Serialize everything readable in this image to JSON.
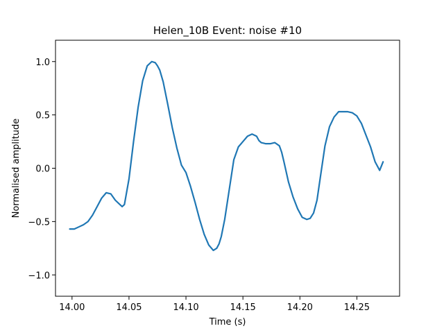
{
  "chart_data": {
    "type": "line",
    "title": "Helen_10B Event: noise #10",
    "xlabel": "Time (s)",
    "ylabel": "Normalised amplitude",
    "xlim": [
      13.9855,
      14.2875
    ],
    "ylim": [
      -1.2,
      1.2
    ],
    "x_ticks": [
      14.0,
      14.05,
      14.1,
      14.15,
      14.2,
      14.25
    ],
    "x_tick_labels": [
      "14.00",
      "14.05",
      "14.10",
      "14.15",
      "14.20",
      "14.25"
    ],
    "y_ticks": [
      -1.0,
      -0.5,
      0.0,
      0.5,
      1.0
    ],
    "y_tick_labels": [
      "−1.0",
      "−0.5",
      "0.0",
      "0.5",
      "1.0"
    ],
    "grid": false,
    "line_color": "#1f77b4",
    "series": [
      {
        "x": [
          13.998,
          14.002,
          14.006,
          14.01,
          14.014,
          14.018,
          14.022,
          14.026,
          14.03,
          14.034,
          14.038,
          14.042,
          14.044,
          14.046,
          14.05,
          14.054,
          14.058,
          14.062,
          14.066,
          14.07,
          14.073,
          14.075,
          14.077,
          14.08,
          14.084,
          14.088,
          14.092,
          14.096,
          14.1,
          14.104,
          14.108,
          14.112,
          14.116,
          14.12,
          14.124,
          14.127,
          14.129,
          14.131,
          14.134,
          14.138,
          14.142,
          14.146,
          14.15,
          14.154,
          14.158,
          14.162,
          14.164,
          14.166,
          14.17,
          14.174,
          14.178,
          14.182,
          14.184,
          14.186,
          14.19,
          14.194,
          14.198,
          14.202,
          14.206,
          14.209,
          14.212,
          14.215,
          14.218,
          14.222,
          14.226,
          14.23,
          14.234,
          14.238,
          14.242,
          14.246,
          14.25,
          14.254,
          14.258,
          14.262,
          14.266,
          14.27,
          14.273
        ],
        "y": [
          -0.57,
          -0.57,
          -0.55,
          -0.53,
          -0.5,
          -0.44,
          -0.36,
          -0.28,
          -0.23,
          -0.24,
          -0.3,
          -0.34,
          -0.36,
          -0.34,
          -0.1,
          0.25,
          0.57,
          0.82,
          0.96,
          1.0,
          0.99,
          0.96,
          0.92,
          0.81,
          0.6,
          0.38,
          0.19,
          0.03,
          -0.04,
          -0.17,
          -0.32,
          -0.48,
          -0.62,
          -0.72,
          -0.77,
          -0.75,
          -0.71,
          -0.64,
          -0.48,
          -0.2,
          0.08,
          0.2,
          0.25,
          0.3,
          0.32,
          0.3,
          0.26,
          0.24,
          0.23,
          0.23,
          0.24,
          0.21,
          0.15,
          0.06,
          -0.13,
          -0.27,
          -0.38,
          -0.46,
          -0.48,
          -0.47,
          -0.42,
          -0.3,
          -0.08,
          0.21,
          0.39,
          0.48,
          0.53,
          0.53,
          0.53,
          0.52,
          0.49,
          0.42,
          0.31,
          0.2,
          0.06,
          -0.02,
          0.06
        ]
      }
    ]
  }
}
